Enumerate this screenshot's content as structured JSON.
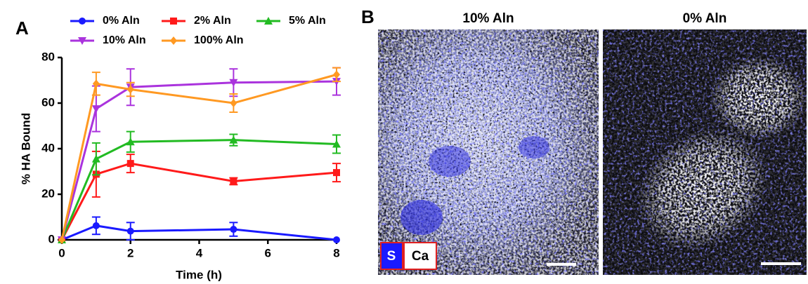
{
  "panel_a_label": "A",
  "chart_data": {
    "type": "line",
    "x_label": "Time (h)",
    "y_label": "% HA Bound",
    "x": [
      0,
      1,
      2,
      5,
      8
    ],
    "xlim": [
      0,
      8
    ],
    "xticks": [
      0,
      2,
      4,
      6,
      8
    ],
    "ylim": [
      0,
      80
    ],
    "yticks": [
      0,
      20,
      40,
      60,
      80
    ],
    "series": [
      {
        "name": "0% Aln",
        "color": "#1a1aff",
        "marker": "circle",
        "values": [
          0,
          6.2,
          3.8,
          4.6,
          0
        ],
        "errors": [
          null,
          3.8,
          3.8,
          3,
          null
        ]
      },
      {
        "name": "2% Aln",
        "color": "#ff1a1a",
        "marker": "square",
        "values": [
          0,
          28.8,
          33.5,
          25.7,
          29.5
        ],
        "errors": [
          null,
          10,
          4,
          1.5,
          4
        ]
      },
      {
        "name": "5% Aln",
        "color": "#22bb22",
        "marker": "triangle-up",
        "values": [
          0,
          35.5,
          43,
          43.8,
          42
        ],
        "errors": [
          null,
          7,
          4.5,
          2.5,
          4
        ]
      },
      {
        "name": "10% Aln",
        "color": "#aa33dd",
        "marker": "triangle-down",
        "values": [
          0,
          57.5,
          67,
          69,
          69.5
        ],
        "errors": [
          null,
          10,
          8,
          6,
          6
        ]
      },
      {
        "name": "100% Aln",
        "color": "#ff9922",
        "marker": "diamond",
        "values": [
          0,
          68.5,
          66,
          60,
          72.5
        ],
        "errors": [
          null,
          5,
          3,
          4,
          3
        ]
      }
    ]
  },
  "panel_b": {
    "label": "B",
    "images": [
      {
        "title": "10% Aln"
      },
      {
        "title": "0% Aln"
      }
    ],
    "channel_labels": [
      "S",
      "Ca"
    ]
  }
}
